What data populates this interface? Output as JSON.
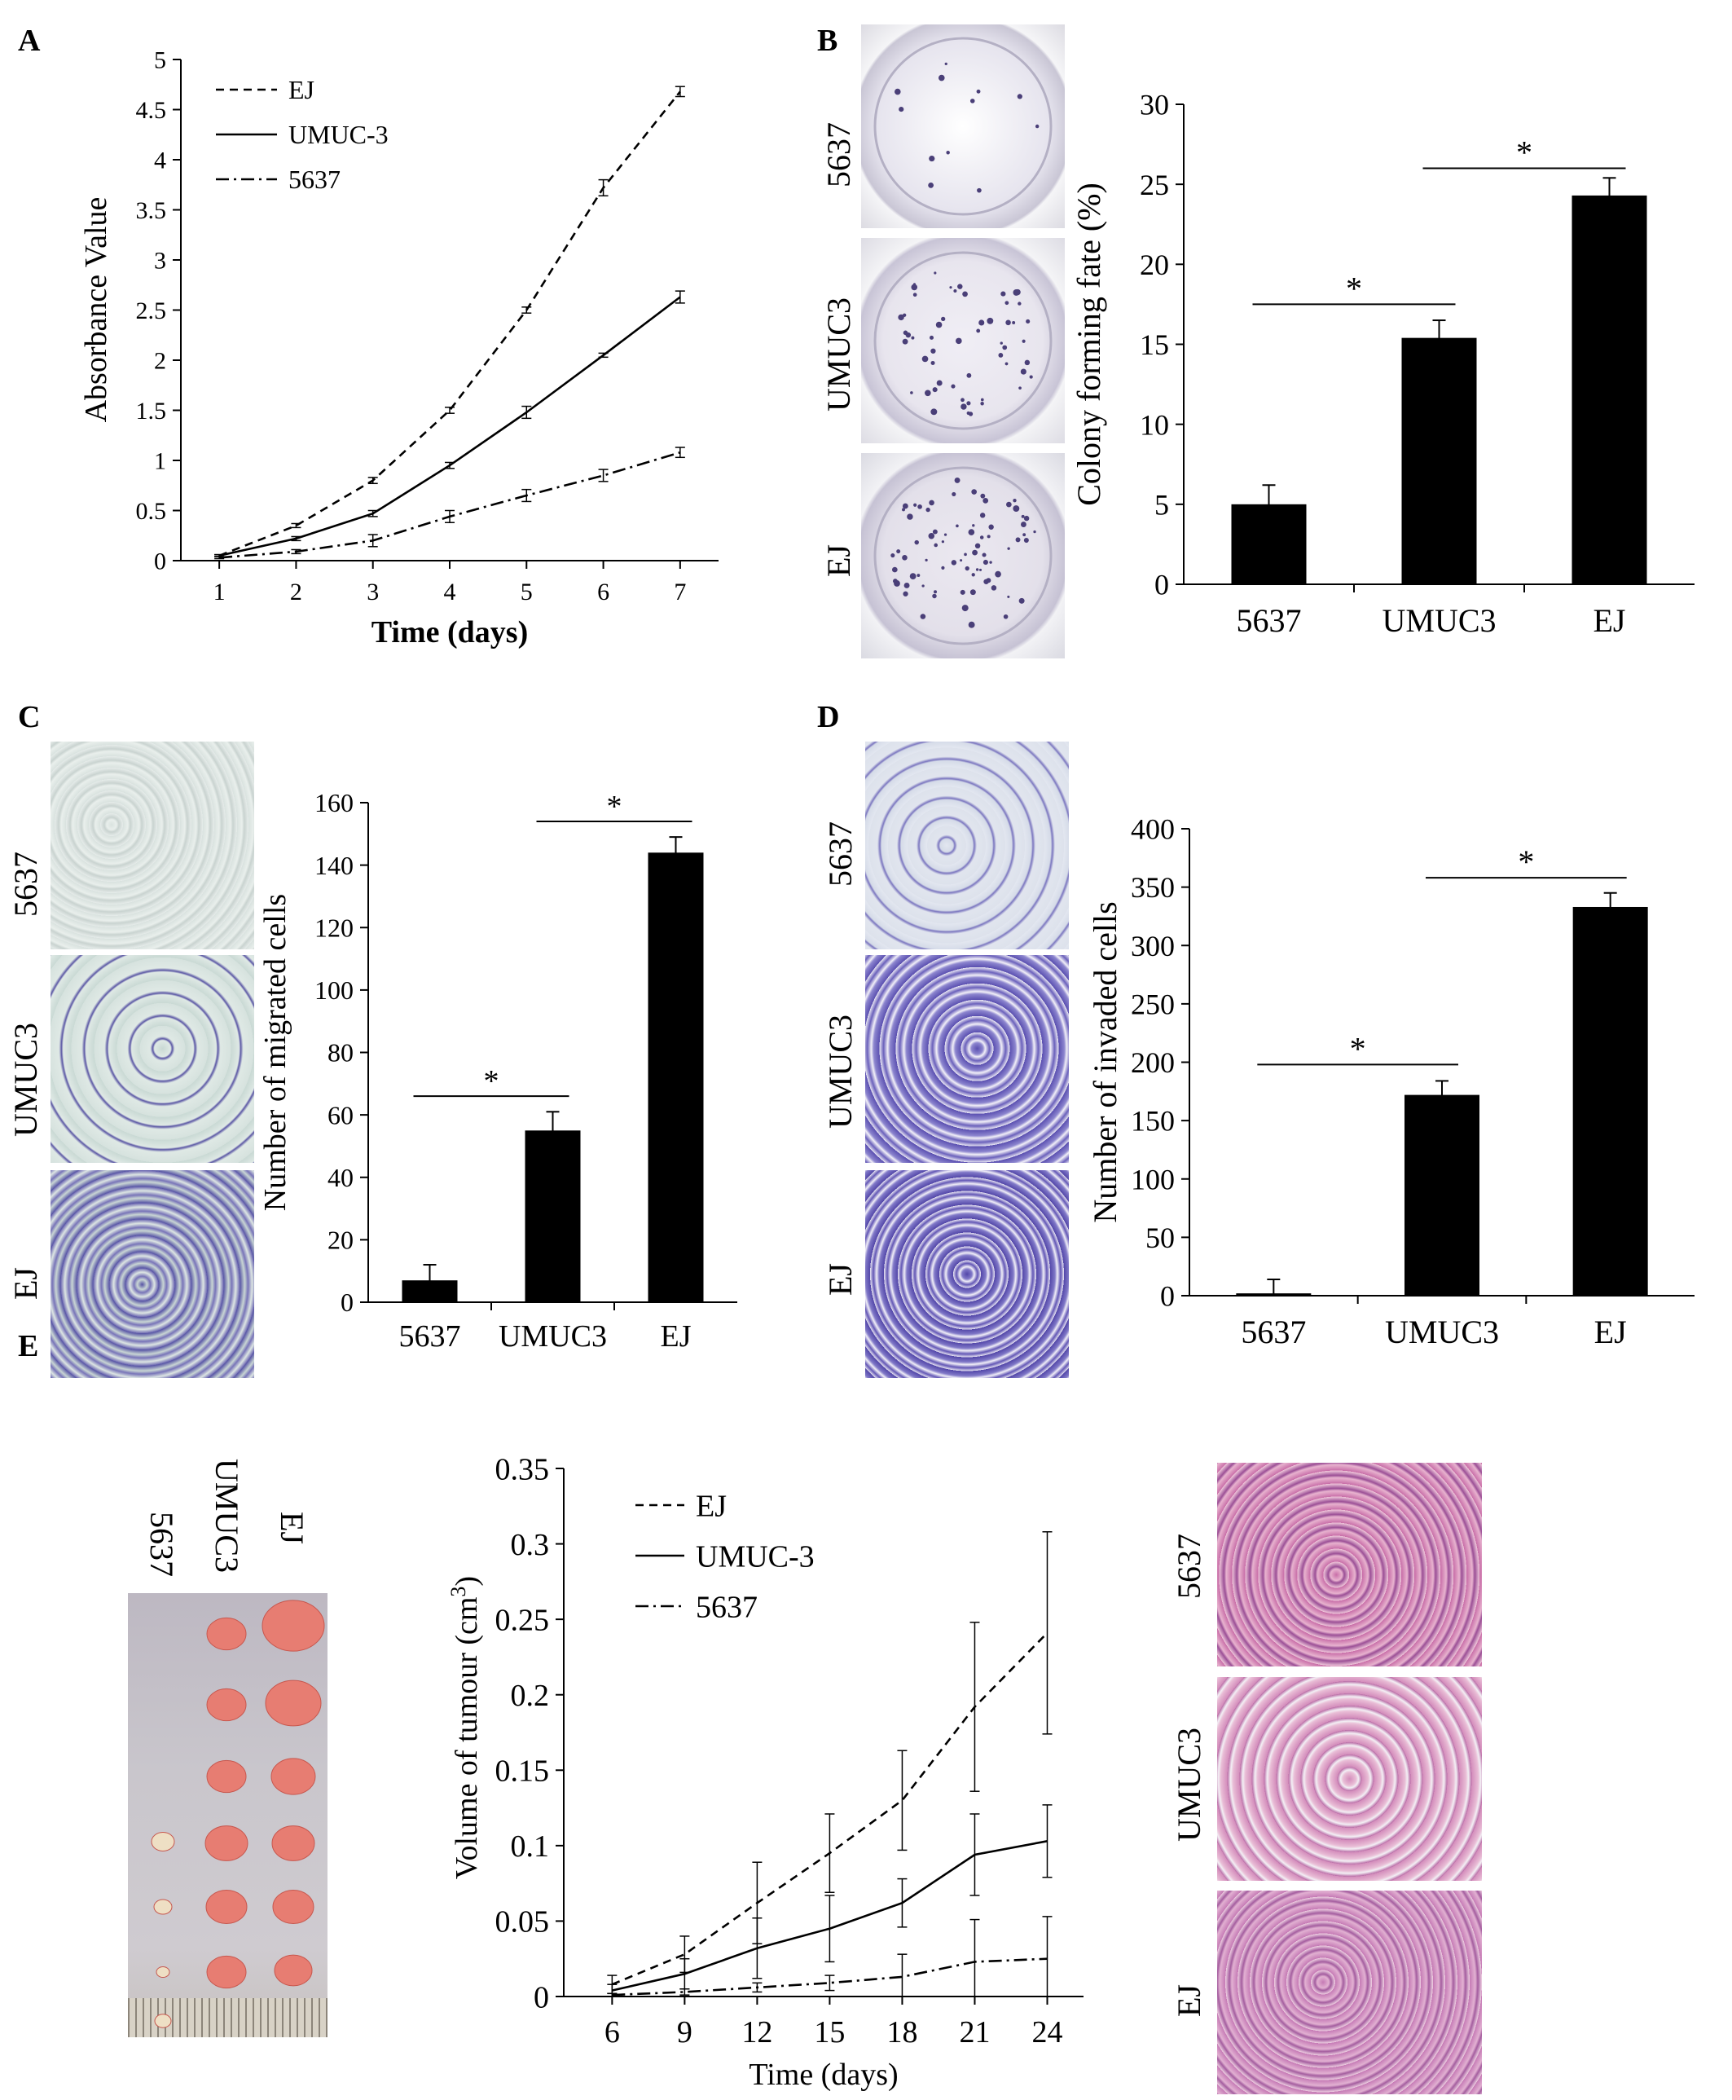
{
  "panels": {
    "A": {
      "letter": "A",
      "chart_data": {
        "type": "line",
        "xlabel": "Time (days)",
        "ylabel": "Absorbance Value",
        "xlim": [
          0.5,
          7.5
        ],
        "ylim": [
          0,
          5
        ],
        "x_ticks": [
          1,
          2,
          3,
          4,
          5,
          6,
          7
        ],
        "y_ticks": [
          "0",
          "0.5",
          "1",
          "1.5",
          "2",
          "2.5",
          "3",
          "3.5",
          "4",
          "4.5",
          "5"
        ],
        "legend_position": "top-left",
        "series": [
          {
            "name": "EJ",
            "style": "dashed",
            "x": [
              1,
              2,
              3,
              4,
              5,
              6,
              7
            ],
            "y": [
              0.05,
              0.35,
              0.8,
              1.5,
              2.5,
              3.72,
              4.68
            ],
            "err": [
              0.01,
              0.02,
              0.03,
              0.03,
              0.03,
              0.08,
              0.05
            ]
          },
          {
            "name": "UMUC-3",
            "style": "solid",
            "x": [
              1,
              2,
              3,
              4,
              5,
              6,
              7
            ],
            "y": [
              0.05,
              0.22,
              0.47,
              0.95,
              1.48,
              2.05,
              2.63
            ],
            "err": [
              0.01,
              0.02,
              0.03,
              0.03,
              0.06,
              0.02,
              0.06
            ]
          },
          {
            "name": "5637",
            "style": "dashdot",
            "x": [
              1,
              2,
              3,
              4,
              5,
              6,
              7
            ],
            "y": [
              0.03,
              0.09,
              0.2,
              0.44,
              0.65,
              0.85,
              1.08
            ],
            "err": [
              0.01,
              0.02,
              0.06,
              0.06,
              0.06,
              0.06,
              0.05
            ]
          }
        ]
      }
    },
    "B": {
      "letter": "B",
      "photo_labels": [
        "5637",
        "UMUC3",
        "EJ"
      ],
      "chart_data": {
        "type": "bar",
        "categories": [
          "5637",
          "UMUC3",
          "EJ"
        ],
        "values": [
          5.0,
          15.4,
          24.3
        ],
        "err": [
          1.2,
          1.1,
          1.1
        ],
        "ylabel": "Colony forming fate (%)",
        "ylim": [
          0,
          30
        ],
        "y_ticks": [
          "0",
          "5",
          "10",
          "15",
          "20",
          "25",
          "30"
        ],
        "significance": [
          {
            "from": 0,
            "to": 1,
            "label": "*",
            "y": 17.5
          },
          {
            "from": 1,
            "to": 2,
            "label": "*",
            "y": 26.0
          }
        ]
      }
    },
    "C": {
      "letter": "C",
      "photo_labels": [
        "5637",
        "UMUC3",
        "EJ"
      ],
      "chart_data": {
        "type": "bar",
        "categories": [
          "5637",
          "UMUC3",
          "EJ"
        ],
        "values": [
          7,
          55,
          144
        ],
        "err": [
          5,
          6,
          5
        ],
        "ylabel": "Number of migrated cells",
        "ylim": [
          0,
          160
        ],
        "y_ticks": [
          "0",
          "20",
          "40",
          "60",
          "80",
          "100",
          "120",
          "140",
          "160"
        ],
        "significance": [
          {
            "from": 0,
            "to": 1,
            "label": "*",
            "y": 66
          },
          {
            "from": 1,
            "to": 2,
            "label": "*",
            "y": 154
          }
        ]
      }
    },
    "D": {
      "letter": "D",
      "photo_labels": [
        "5637",
        "UMUC3",
        "EJ"
      ],
      "chart_data": {
        "type": "bar",
        "categories": [
          "5637",
          "UMUC3",
          "EJ"
        ],
        "values": [
          2,
          172,
          333
        ],
        "err": [
          12,
          12,
          12
        ],
        "ylabel": "Number of  invaded cells",
        "ylim": [
          0,
          400
        ],
        "y_ticks": [
          "0",
          "50",
          "100",
          "150",
          "200",
          "250",
          "300",
          "350",
          "400"
        ],
        "significance": [
          {
            "from": 0,
            "to": 1,
            "label": "*",
            "y": 198
          },
          {
            "from": 1,
            "to": 2,
            "label": "*",
            "y": 358
          }
        ]
      }
    },
    "E": {
      "letter": "E",
      "tumour_labels": [
        "5637",
        "UMUC3",
        "EJ"
      ],
      "histo_labels": [
        "5637",
        "UMUC3",
        "EJ"
      ],
      "chart_data": {
        "type": "line",
        "xlabel": "Time (days)",
        "ylabel_main": "Volume of tumour (cm",
        "ylabel_sup": "3",
        "ylabel_end": ")",
        "xlim": [
          4,
          25.5
        ],
        "ylim": [
          0,
          0.35
        ],
        "x_ticks": [
          6,
          9,
          12,
          15,
          18,
          21,
          24
        ],
        "y_ticks": [
          "0",
          "0.05",
          "0.1",
          "0.15",
          "0.2",
          "0.25",
          "0.3",
          "0.35"
        ],
        "legend_position": "top-left",
        "series": [
          {
            "name": "EJ",
            "style": "dashed",
            "x": [
              6,
              9,
              12,
              15,
              18,
              21,
              24
            ],
            "y": [
              0.008,
              0.028,
              0.062,
              0.095,
              0.13,
              0.192,
              0.241
            ],
            "err": [
              0.006,
              0.012,
              0.027,
              0.026,
              0.033,
              0.056,
              0.067
            ]
          },
          {
            "name": "UMUC-3",
            "style": "solid",
            "x": [
              6,
              9,
              12,
              15,
              18,
              21,
              24
            ],
            "y": [
              0.004,
              0.015,
              0.032,
              0.045,
              0.062,
              0.094,
              0.103
            ],
            "err": [
              0.004,
              0.01,
              0.02,
              0.022,
              0.016,
              0.027,
              0.024
            ]
          },
          {
            "name": "5637",
            "style": "dashdot",
            "x": [
              6,
              9,
              12,
              15,
              18,
              21,
              24
            ],
            "y": [
              0.001,
              0.003,
              0.006,
              0.009,
              0.013,
              0.023,
              0.025
            ],
            "err": [
              0.001,
              0.002,
              0.003,
              0.005,
              0.015,
              0.028,
              0.028
            ]
          }
        ]
      }
    }
  }
}
